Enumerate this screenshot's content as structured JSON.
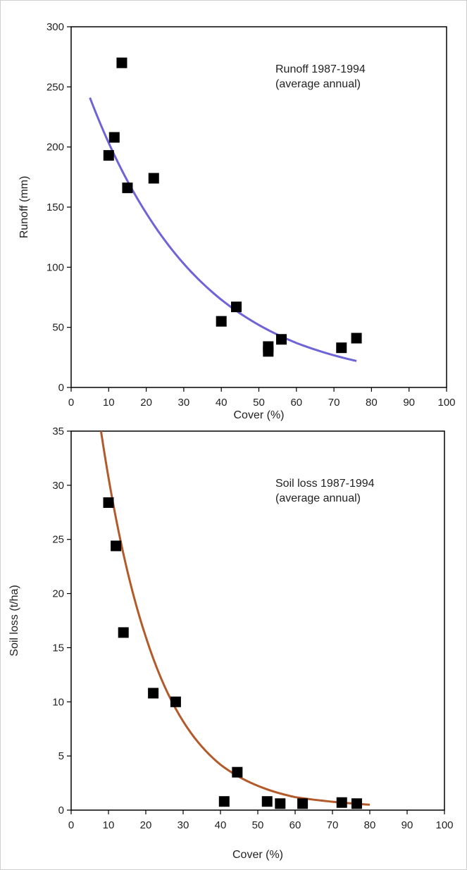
{
  "chart_data": [
    {
      "type": "scatter",
      "title": "",
      "annotation": [
        "Runoff 1987-1994",
        "(average annual)"
      ],
      "xlabel": "Cover (%)",
      "ylabel": "Runoff (mm)",
      "xlim": [
        0,
        100
      ],
      "ylim": [
        0,
        300
      ],
      "xticks": [
        "0",
        "10",
        "20",
        "30",
        "40",
        "50",
        "60",
        "70",
        "80",
        "90",
        "100"
      ],
      "yticks": [
        "0",
        "50",
        "100",
        "150",
        "200",
        "250",
        "300"
      ],
      "grid": false,
      "series": [
        {
          "points": [
            {
              "x": 10,
              "y": 193
            },
            {
              "x": 11.5,
              "y": 208
            },
            {
              "x": 13.5,
              "y": 270
            },
            {
              "x": 15,
              "y": 166
            },
            {
              "x": 22,
              "y": 174
            },
            {
              "x": 40,
              "y": 55
            },
            {
              "x": 44,
              "y": 67
            },
            {
              "x": 52.5,
              "y": 30
            },
            {
              "x": 52.5,
              "y": 34
            },
            {
              "x": 56,
              "y": 40
            },
            {
              "x": 72,
              "y": 33
            },
            {
              "x": 76,
              "y": 41
            }
          ],
          "marker": "square",
          "color": "#000000"
        }
      ],
      "trendline": {
        "type": "exponential",
        "x": [
          5,
          20,
          40,
          60,
          76
        ],
        "y": [
          241,
          145,
          73,
          37,
          22
        ],
        "color": "#6f63d8"
      }
    },
    {
      "type": "scatter",
      "title": "",
      "annotation": [
        "Soil loss 1987-1994",
        "(average annual)"
      ],
      "xlabel": "Cover (%)",
      "ylabel": "Soil loss (t/ha)",
      "xlim": [
        0,
        100
      ],
      "ylim": [
        0,
        35
      ],
      "xticks": [
        "0",
        "10",
        "20",
        "30",
        "40",
        "50",
        "60",
        "70",
        "80",
        "90",
        "100"
      ],
      "yticks": [
        "0",
        "5",
        "10",
        "15",
        "20",
        "25",
        "30",
        "35"
      ],
      "grid": false,
      "series": [
        {
          "points": [
            {
              "x": 10,
              "y": 28.4
            },
            {
              "x": 12,
              "y": 24.4
            },
            {
              "x": 14,
              "y": 16.4
            },
            {
              "x": 22,
              "y": 10.8
            },
            {
              "x": 28,
              "y": 10.0
            },
            {
              "x": 41,
              "y": 0.8
            },
            {
              "x": 44.5,
              "y": 3.5
            },
            {
              "x": 52.5,
              "y": 0.8
            },
            {
              "x": 56,
              "y": 0.6
            },
            {
              "x": 62,
              "y": 0.6
            },
            {
              "x": 72.5,
              "y": 0.7
            },
            {
              "x": 76.5,
              "y": 0.6
            }
          ],
          "marker": "square",
          "color": "#000000"
        }
      ],
      "trendline": {
        "type": "exponential",
        "x": [
          8,
          20,
          40,
          60,
          80
        ],
        "y": [
          35,
          16,
          4.2,
          1.2,
          0.5
        ],
        "color": "#b35a2a"
      }
    }
  ]
}
